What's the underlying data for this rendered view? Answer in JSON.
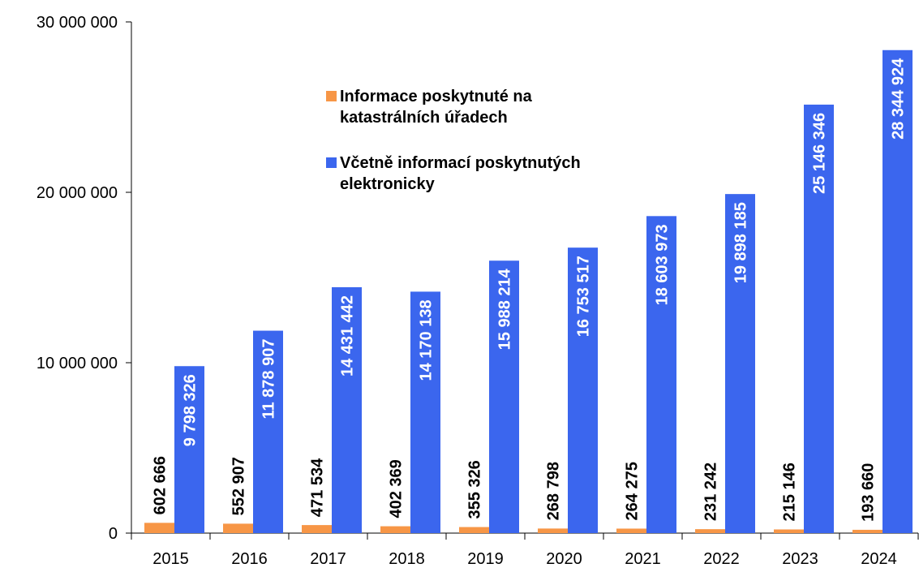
{
  "chart_data": {
    "type": "bar",
    "categories": [
      "2015",
      "2016",
      "2017",
      "2018",
      "2019",
      "2020",
      "2021",
      "2022",
      "2023",
      "2024"
    ],
    "series": [
      {
        "name": "Informace poskytnuté na katastrálních úřadech",
        "color": "#f79646",
        "values": [
          602666,
          552907,
          471534,
          402369,
          355326,
          268798,
          264275,
          231242,
          215146,
          193660
        ],
        "value_labels": [
          "602 666",
          "552 907",
          "471 534",
          "402 369",
          "355 326",
          "268 798",
          "264 275",
          "231 242",
          "215 146",
          "193 660"
        ]
      },
      {
        "name": "Včetně informací poskytnutých elektronicky",
        "color": "#3b66ee",
        "values": [
          9798326,
          11878907,
          14431442,
          14170138,
          15988214,
          16753517,
          18603973,
          19898185,
          25146346,
          28344924
        ],
        "value_labels": [
          "9 798 326",
          "11 878 907",
          "14 431 442",
          "14 170 138",
          "15 988 214",
          "16 753 517",
          "18 603 973",
          "19 898 185",
          "25 146 346",
          "28 344 924"
        ]
      }
    ],
    "ylim": [
      0,
      30000000
    ],
    "yticks": [
      0,
      {
        "value": 10000000,
        "label": "10 000 000"
      },
      {
        "value": 20000000,
        "label": "20 000 000"
      },
      {
        "value": 30000000,
        "label": "30 000 000"
      }
    ],
    "grid": false
  }
}
